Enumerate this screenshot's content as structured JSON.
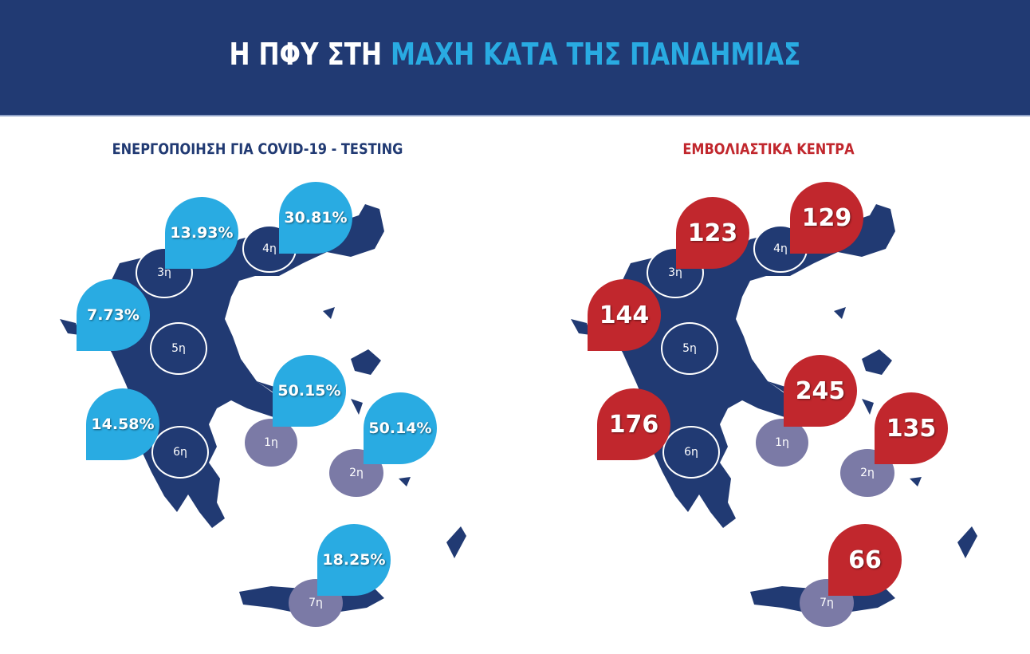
{
  "header": {
    "title_part1": "Η ΠΦΥ ΣΤΗ",
    "title_part2": "ΜΑΧΗ ΚΑΤΑ ΤΗΣ ΠΑΝΔΗΜΙΑΣ"
  },
  "colors": {
    "navy": "#213a73",
    "light_blue": "#29abe2",
    "red": "#c1272d",
    "purple": "#7b7aa6"
  },
  "regions": [
    "1η",
    "2η",
    "3η",
    "4η",
    "5η",
    "6η",
    "7η"
  ],
  "testing": {
    "title": "ΕΝΕΡΓΟΠΟΙΗΣΗ ΓΙΑ COVID-19 - TESTING",
    "values": {
      "1η": "50.15%",
      "2η": "50.14%",
      "3η": "13.93%",
      "4η": "30.81%",
      "5η": "7.73%",
      "6η": "14.58%",
      "7η": "18.25%"
    }
  },
  "vaccination": {
    "title": "ΕΜΒΟΛΙΑΣΤΙΚΑ ΚΕΝΤΡΑ",
    "values": {
      "1η": "245",
      "2η": "135",
      "3η": "123",
      "4η": "129",
      "5η": "144",
      "6η": "176",
      "7η": "66"
    }
  }
}
